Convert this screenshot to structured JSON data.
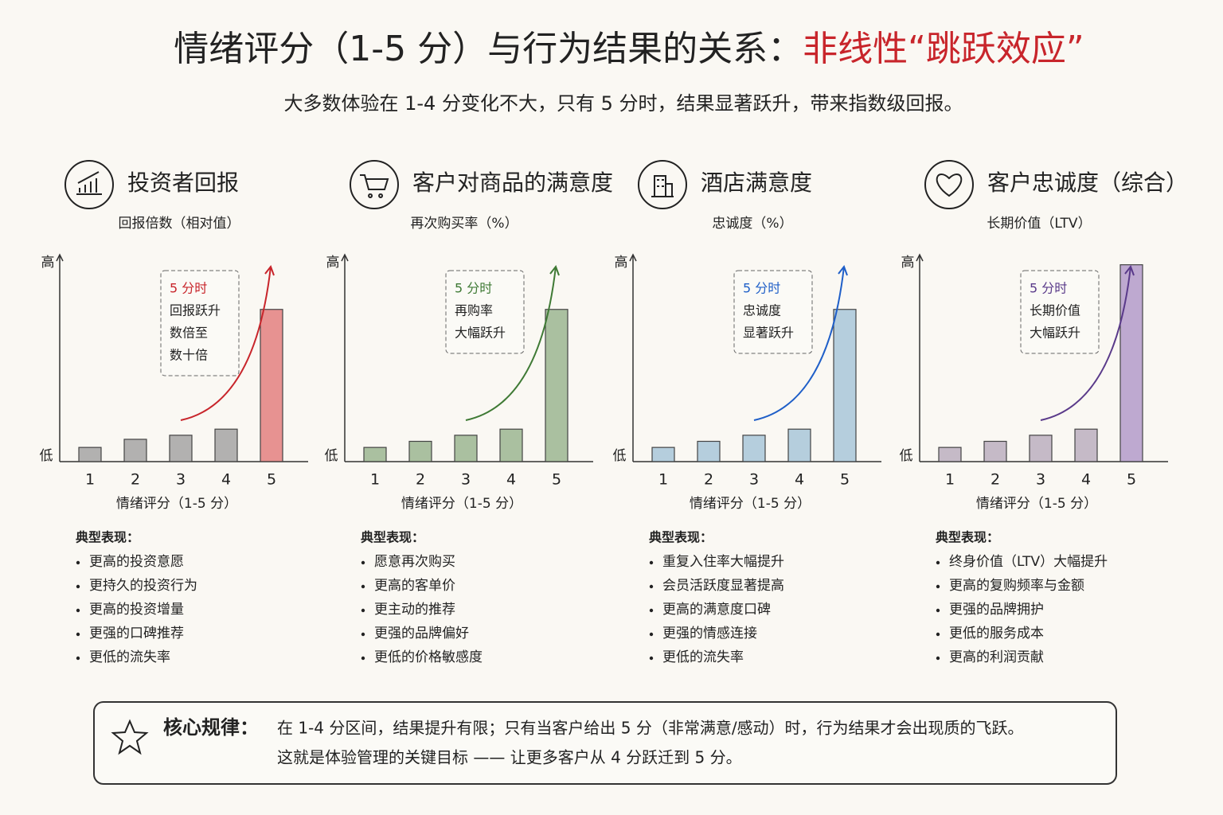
{
  "header": {
    "title": "情绪评分（1-5 分）与行为结果的关系：",
    "title_highlight": "非线性“跳跃效应”",
    "subtitle": "大多数体验在 1-4 分变化不大，只有 5 分时，结果显著跃升，带来指数级回报。"
  },
  "chart_data": [
    {
      "type": "bar",
      "title": "投资者回报",
      "subtitle": "回报倍数（相对值）",
      "y_high_label": "高",
      "y_low_label": "低",
      "categories": [
        "1",
        "2",
        "3",
        "4",
        "5"
      ],
      "values": [
        7,
        11,
        13,
        16,
        75
      ],
      "colors": [
        "#9a9a9a",
        "#9a9a9a",
        "#9a9a9a",
        "#9a9a9a",
        "#e07070"
      ],
      "accent": "#c8252b",
      "ylim": [
        0,
        100
      ],
      "xlabel": "情绪评分（1-5 分）",
      "callout": [
        "5 分时",
        "回报跃升",
        "数倍至",
        "数十倍"
      ],
      "notes_title": "典型表现：",
      "notes": [
        "更高的投资意愿",
        "更持久的投资行为",
        "更高的投资增量",
        "更强的口碑推荐",
        "更低的流失率"
      ]
    },
    {
      "type": "bar",
      "title": "客户对商品的满意度",
      "subtitle": "再次购买率（%）",
      "y_high_label": "高",
      "y_low_label": "低",
      "categories": [
        "1",
        "2",
        "3",
        "4",
        "5"
      ],
      "values": [
        7,
        10,
        13,
        16,
        75
      ],
      "colors": [
        "#8fae84",
        "#8fae84",
        "#8fae84",
        "#8fae84",
        "#8fae84"
      ],
      "accent": "#3f7a35",
      "ylim": [
        0,
        100
      ],
      "xlabel": "情绪评分（1-5 分）",
      "callout": [
        "5 分时",
        "再购率",
        "大幅跃升"
      ],
      "notes_title": "典型表现：",
      "notes": [
        "愿意再次购买",
        "更高的客单价",
        "更主动的推荐",
        "更强的品牌偏好",
        "更低的价格敏感度"
      ]
    },
    {
      "type": "bar",
      "title": "酒店满意度",
      "subtitle": "忠诚度（%）",
      "y_high_label": "高",
      "y_low_label": "低",
      "categories": [
        "1",
        "2",
        "3",
        "4",
        "5"
      ],
      "values": [
        7,
        10,
        13,
        16,
        75
      ],
      "colors": [
        "#9ec0d6",
        "#9ec0d6",
        "#9ec0d6",
        "#9ec0d6",
        "#9ec0d6"
      ],
      "accent": "#1f5fc8",
      "ylim": [
        0,
        100
      ],
      "xlabel": "情绪评分（1-5 分）",
      "callout": [
        "5 分时",
        "忠诚度",
        "显著跃升"
      ],
      "notes_title": "典型表现：",
      "notes": [
        "重复入住率大幅提升",
        "会员活跃度显著提高",
        "更高的满意度口碑",
        "更强的情感连接",
        "更低的流失率"
      ]
    },
    {
      "type": "bar",
      "title": "客户忠诚度（综合）",
      "subtitle": "长期价值（LTV）",
      "y_high_label": "高",
      "y_low_label": "低",
      "categories": [
        "1",
        "2",
        "3",
        "4",
        "5"
      ],
      "values": [
        7,
        10,
        13,
        16,
        97
      ],
      "colors": [
        "#b3a6b8",
        "#b3a6b8",
        "#b3a6b8",
        "#b3a6b8",
        "#a98fc4"
      ],
      "accent": "#5a3a8a",
      "ylim": [
        0,
        100
      ],
      "xlabel": "情绪评分（1-5 分）",
      "callout": [
        "5 分时",
        "长期价值",
        "大幅跃升"
      ],
      "notes_title": "典型表现：",
      "notes": [
        "终身价值（LTV）大幅提升",
        "更高的复购频率与金额",
        "更强的品牌拥护",
        "更低的服务成本",
        "更高的利润贡献"
      ]
    }
  ],
  "footer": {
    "label": "核心规律：",
    "lines": [
      "在 1-4 分区间，结果提升有限；只有当客户给出 5 分（非常满意/感动）时，行为结果才会出现质的飞跃。",
      "这就是体验管理的关键目标 —— 让更多客户从 4 分跃迁到 5 分。"
    ]
  }
}
